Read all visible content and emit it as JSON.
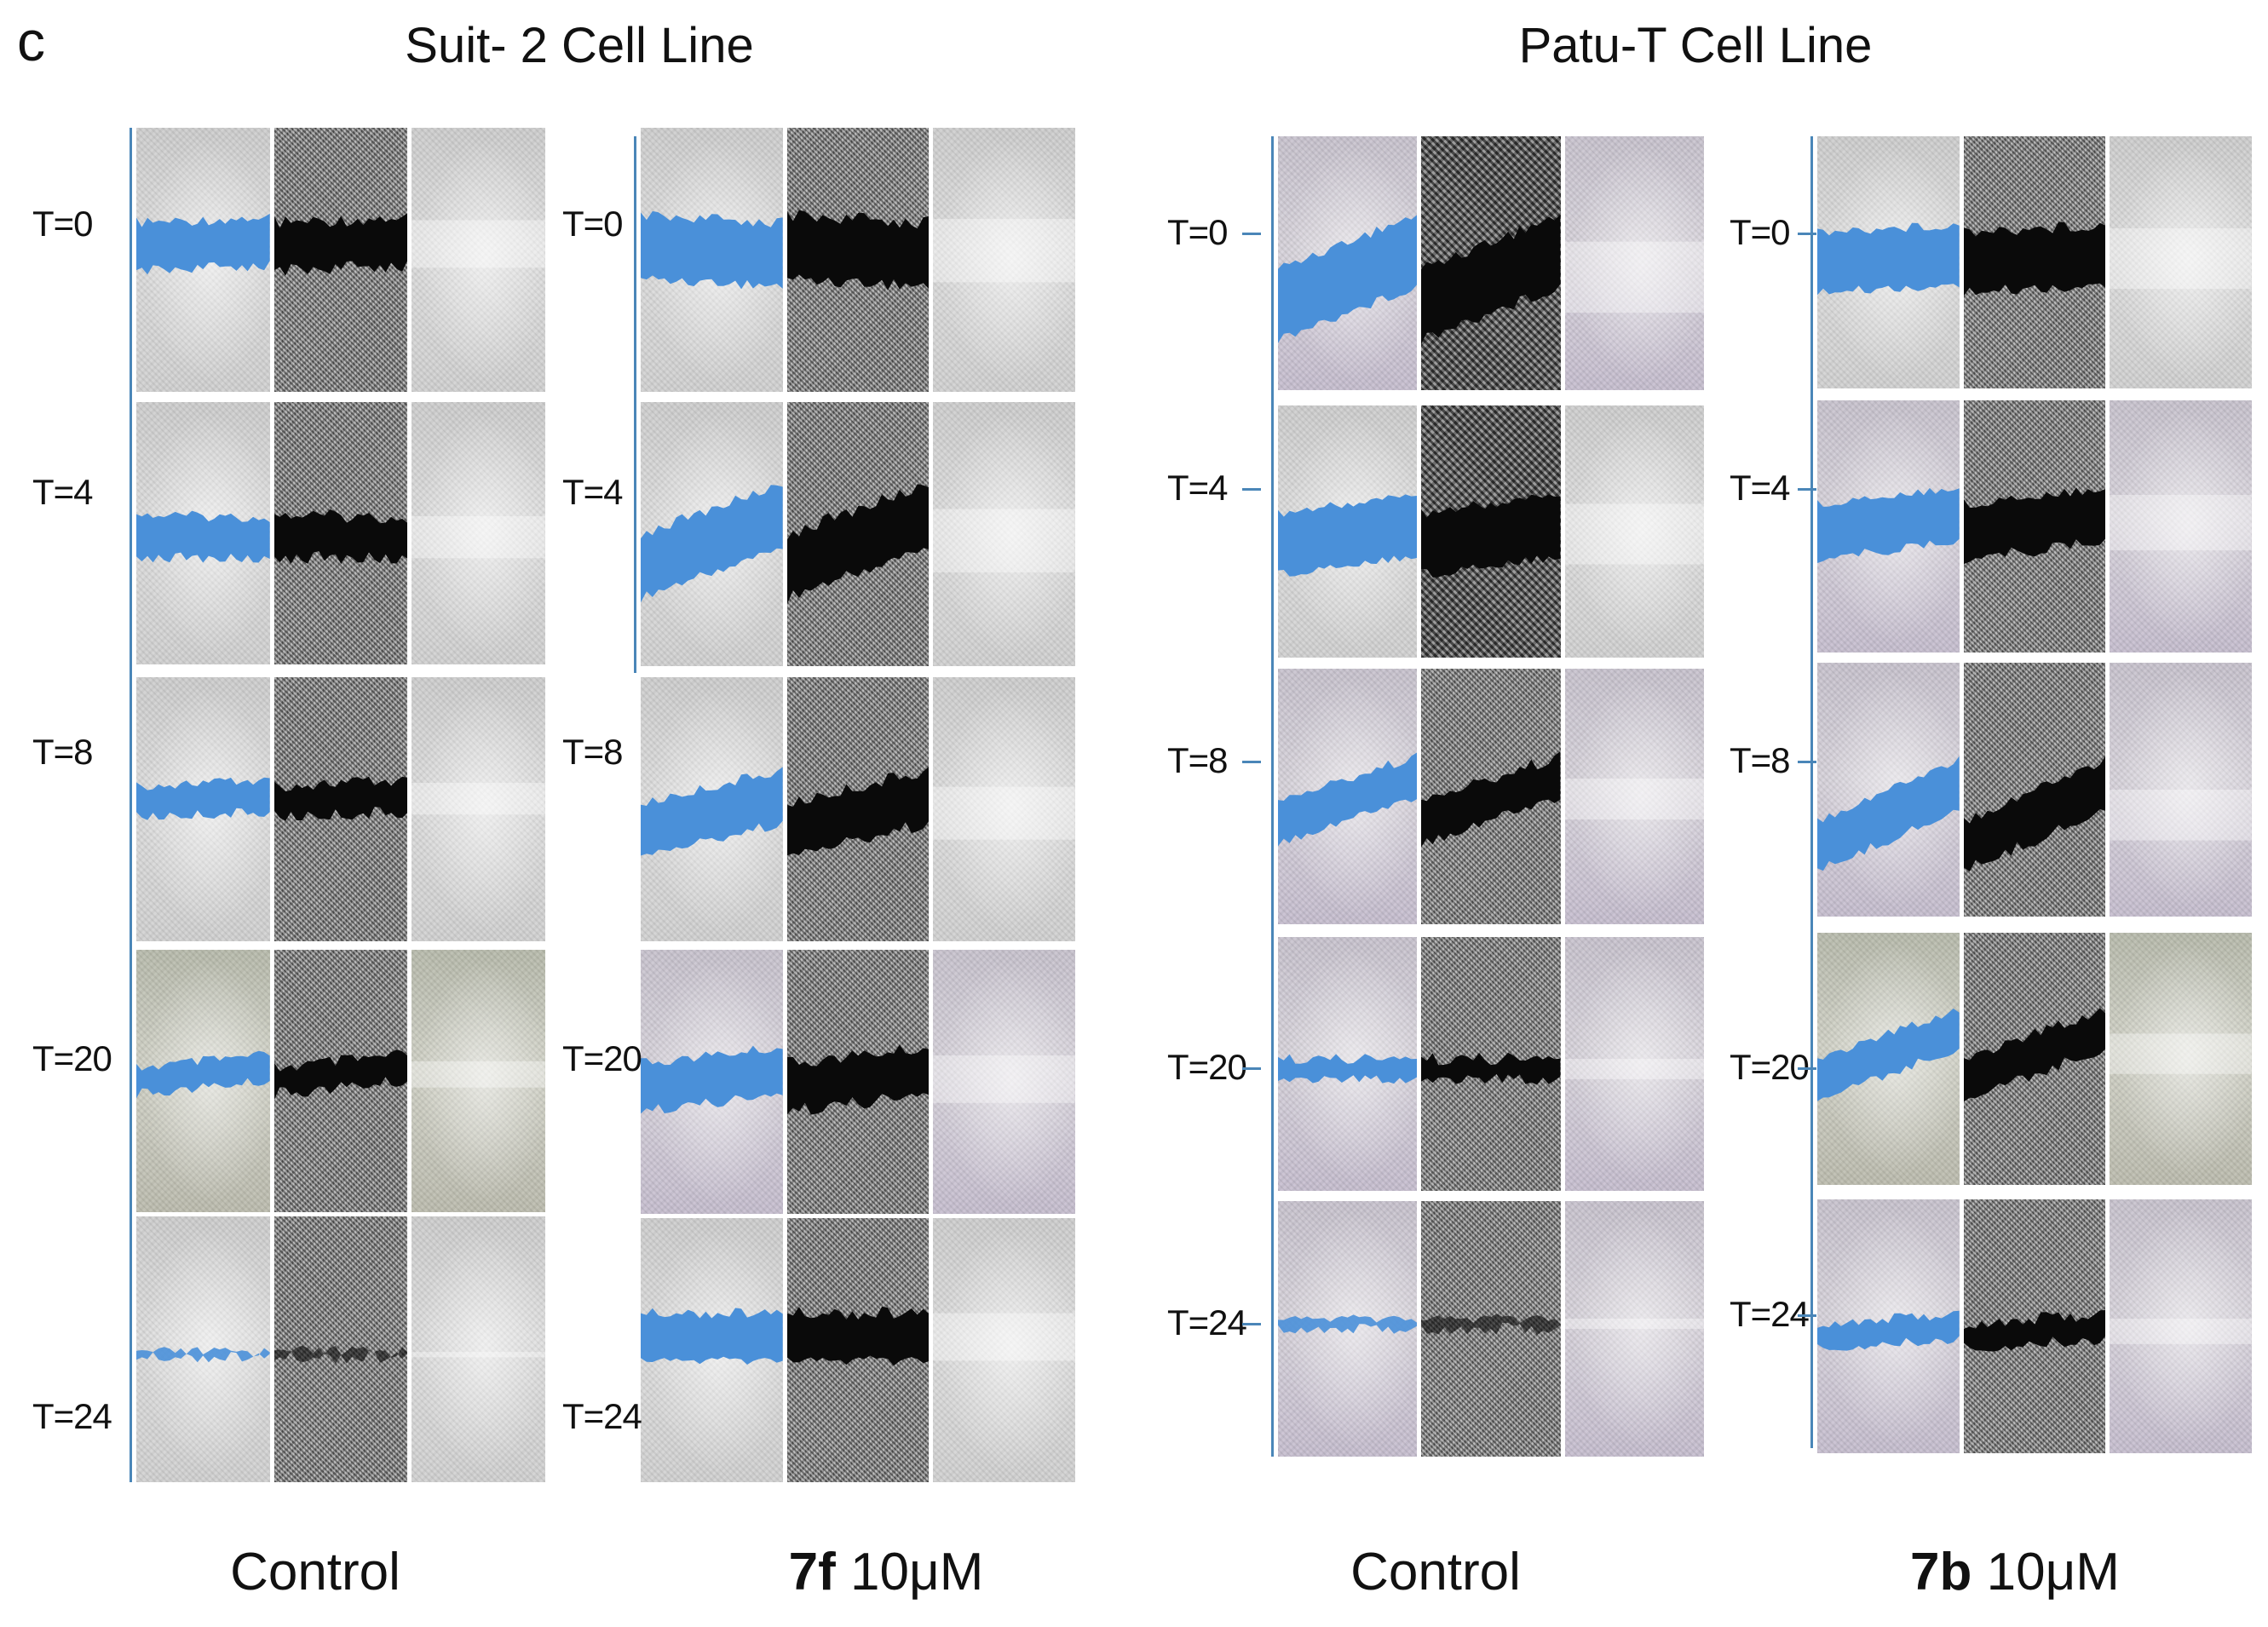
{
  "panel_letter": "c",
  "titles": {
    "left": "Suit- 2 Cell Line",
    "right": "Patu-T Cell Line"
  },
  "columns": [
    {
      "bold": "",
      "rest": "Control"
    },
    {
      "bold": "7f",
      "rest": " 10μM"
    },
    {
      "bold": "",
      "rest": "Control"
    },
    {
      "bold": "7b",
      "rest": " 10μM"
    }
  ],
  "time_labels": {
    "c1": [
      "T=0",
      "T=4",
      "T=8",
      "T=20",
      "T=24"
    ],
    "c2": [
      "T=0",
      "T=4",
      "T=8",
      "T=20",
      "T=24"
    ],
    "c3": [
      "T=0",
      "T=4",
      "T=8",
      "T=20",
      "T=24"
    ],
    "c4": [
      "T=0",
      "T=4",
      "T=8",
      "T=20",
      "T=24"
    ]
  },
  "colors": {
    "wound_highlight": "#4a90d9",
    "wound_mask": "#0a0a0a",
    "bracket": "#4a86b8"
  }
}
